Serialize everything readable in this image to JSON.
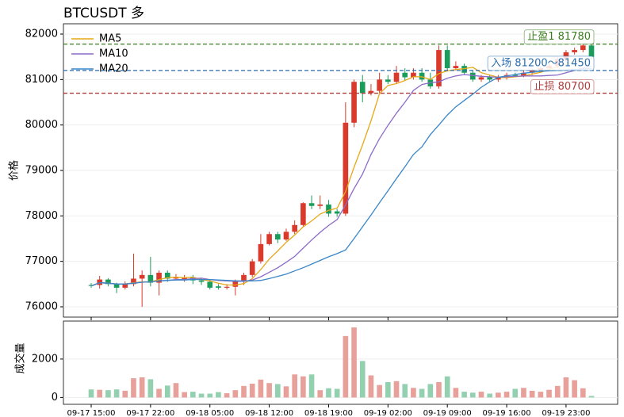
{
  "chart_data": {
    "type": "candlestick",
    "title": "BTCUSDT  多",
    "ylabel": "价格",
    "categories": [
      "09-17 15:00",
      null,
      null,
      null,
      null,
      null,
      null,
      "09-17 22:00",
      null,
      null,
      null,
      null,
      null,
      null,
      "09-18 05:00",
      null,
      null,
      null,
      null,
      null,
      null,
      "09-18 12:00",
      null,
      null,
      null,
      null,
      null,
      null,
      "09-18 19:00",
      null,
      null,
      null,
      null,
      null,
      null,
      "09-19 02:00",
      null,
      null,
      null,
      null,
      null,
      null,
      "09-19 09:00",
      null,
      null,
      null,
      null,
      null,
      null,
      "09-19 16:00",
      null,
      null,
      null,
      null,
      null,
      null,
      "09-19 23:00",
      null,
      null,
      null
    ],
    "open": [
      76480,
      76480,
      76600,
      76500,
      76420,
      76500,
      76620,
      76700,
      76530,
      76750,
      76620,
      76600,
      76650,
      76580,
      76550,
      76450,
      76420,
      76440,
      76560,
      76700,
      77000,
      77380,
      77600,
      77480,
      77650,
      77800,
      78280,
      78220,
      78250,
      78100,
      78050,
      80050,
      80950,
      80700,
      80750,
      81000,
      80950,
      81150,
      81050,
      81150,
      81000,
      80850,
      81650,
      81250,
      81300,
      81150,
      81000,
      81050,
      81000,
      81050,
      81100,
      81080,
      81150,
      81200,
      81250,
      81300,
      81450,
      81600,
      81650,
      81750
    ],
    "high": [
      76520,
      76680,
      76630,
      76530,
      76560,
      77170,
      76800,
      77100,
      76800,
      76800,
      76720,
      76700,
      76700,
      76640,
      76600,
      76500,
      76500,
      76600,
      76750,
      77050,
      77600,
      77650,
      77650,
      77720,
      77900,
      78300,
      78450,
      78450,
      78350,
      78150,
      80500,
      81000,
      81100,
      80900,
      81150,
      81100,
      81300,
      81250,
      81250,
      81250,
      81150,
      81750,
      81750,
      81400,
      81350,
      81200,
      81100,
      81100,
      81100,
      81150,
      81150,
      81200,
      81250,
      81300,
      81350,
      81500,
      81650,
      81700,
      81800,
      81780
    ],
    "low": [
      76420,
      76400,
      76450,
      76300,
      76380,
      76450,
      76000,
      76450,
      76250,
      76550,
      76600,
      76550,
      76500,
      76480,
      76380,
      76380,
      76380,
      76250,
      76480,
      76650,
      76950,
      77350,
      77400,
      77450,
      77600,
      77750,
      78150,
      78150,
      77980,
      77980,
      78000,
      79950,
      80500,
      80650,
      80700,
      80900,
      80900,
      80980,
      81000,
      80950,
      80800,
      80800,
      81200,
      81200,
      81100,
      80950,
      80950,
      80950,
      80950,
      81000,
      81050,
      81050,
      81100,
      81150,
      81200,
      81250,
      81400,
      81550,
      81600,
      81450
    ],
    "close": [
      76460,
      76600,
      76500,
      76420,
      76500,
      76620,
      76700,
      76530,
      76750,
      76620,
      76650,
      76650,
      76580,
      76550,
      76420,
      76420,
      76440,
      76560,
      76700,
      77000,
      77380,
      77600,
      77480,
      77650,
      77800,
      78280,
      78220,
      78250,
      78050,
      78050,
      80050,
      80950,
      80700,
      80750,
      81000,
      80950,
      81150,
      81050,
      81150,
      81000,
      80850,
      81650,
      81250,
      81300,
      81150,
      81000,
      81050,
      81000,
      81050,
      81100,
      81080,
      81150,
      81200,
      81250,
      81300,
      81450,
      81600,
      81650,
      81750,
      81500
    ],
    "up_color": "#d93a2b",
    "down_color": "#1a9c5b",
    "ylim": [
      75773,
      82227
    ],
    "yticks": [
      76000,
      77000,
      78000,
      79000,
      80000,
      81000,
      82000
    ],
    "grid": true,
    "ma": [
      {
        "name": "MA5",
        "color": "#e6a817",
        "values": [
          76460,
          76530,
          76520,
          76500,
          76500,
          76530,
          76550,
          76550,
          76600,
          76640,
          76650,
          76640,
          76650,
          76600,
          76570,
          76520,
          76480,
          76480,
          76510,
          76620,
          76820,
          77050,
          77230,
          77420,
          77580,
          77760,
          77890,
          78040,
          78120,
          78170,
          78530,
          79070,
          79560,
          80090,
          80690,
          80870,
          80910,
          80980,
          81060,
          81060,
          81000,
          81130,
          81190,
          81220,
          81240,
          81270,
          81150,
          81100,
          81050,
          81040,
          81060,
          81080,
          81120,
          81160,
          81220,
          81290,
          81330,
          81390,
          81440,
          81450
        ]
      },
      {
        "name": "MA10",
        "color": "#8c6bc8",
        "values": [
          76460,
          76530,
          76520,
          76500,
          76500,
          76520,
          76540,
          76550,
          76570,
          76580,
          76600,
          76600,
          76620,
          76630,
          76600,
          76580,
          76570,
          76560,
          76560,
          76590,
          76660,
          76760,
          76860,
          76980,
          77110,
          77290,
          77470,
          77640,
          77790,
          77920,
          78240,
          78600,
          78920,
          79350,
          79700,
          79990,
          80260,
          80500,
          80760,
          80890,
          80930,
          80950,
          81030,
          81080,
          81110,
          81090,
          81070,
          81060,
          81050,
          81060,
          81070,
          81080,
          81080,
          81080,
          81090,
          81100,
          81150,
          81200,
          81250,
          81290
        ]
      },
      {
        "name": "MA20",
        "color": "#3a86c8",
        "values": [
          76460,
          76530,
          76520,
          76500,
          76500,
          76520,
          76540,
          76550,
          76570,
          76580,
          76590,
          76590,
          76600,
          76600,
          76600,
          76590,
          76580,
          76570,
          76570,
          76570,
          76580,
          76620,
          76670,
          76720,
          76790,
          76860,
          76940,
          77020,
          77100,
          77170,
          77250,
          77500,
          77760,
          78020,
          78290,
          78550,
          78820,
          79080,
          79350,
          79520,
          79790,
          80000,
          80220,
          80400,
          80540,
          80680,
          80830,
          80950,
          81050,
          81080,
          81110,
          81140,
          81160,
          81180,
          81190,
          81200,
          81210,
          81220,
          81230,
          81240
        ]
      }
    ],
    "levels": [
      {
        "label": "止盈1 81780",
        "value": 81780,
        "color": "#3a7d1e"
      },
      {
        "label": "入场 81200～81450",
        "value": 81200,
        "color": "#2a6fb0"
      },
      {
        "label": "止损 80700",
        "value": 80700,
        "color": "#b03a3a"
      }
    ],
    "volume": {
      "ylabel": "成交量",
      "values": [
        420,
        400,
        380,
        420,
        350,
        1000,
        1050,
        950,
        450,
        620,
        750,
        280,
        300,
        200,
        200,
        280,
        220,
        380,
        600,
        720,
        930,
        750,
        700,
        580,
        1200,
        1100,
        1200,
        380,
        480,
        450,
        3200,
        3650,
        1900,
        1150,
        650,
        800,
        850,
        700,
        500,
        450,
        700,
        800,
        1100,
        500,
        300,
        250,
        300,
        200,
        250,
        300,
        450,
        500,
        350,
        300,
        400,
        600,
        1050,
        900,
        480,
        80
      ],
      "up_color": "#e8a09a",
      "down_color": "#93d0b0",
      "ylim": [
        -356,
        3978
      ],
      "yticks": [
        0,
        2000
      ]
    }
  }
}
